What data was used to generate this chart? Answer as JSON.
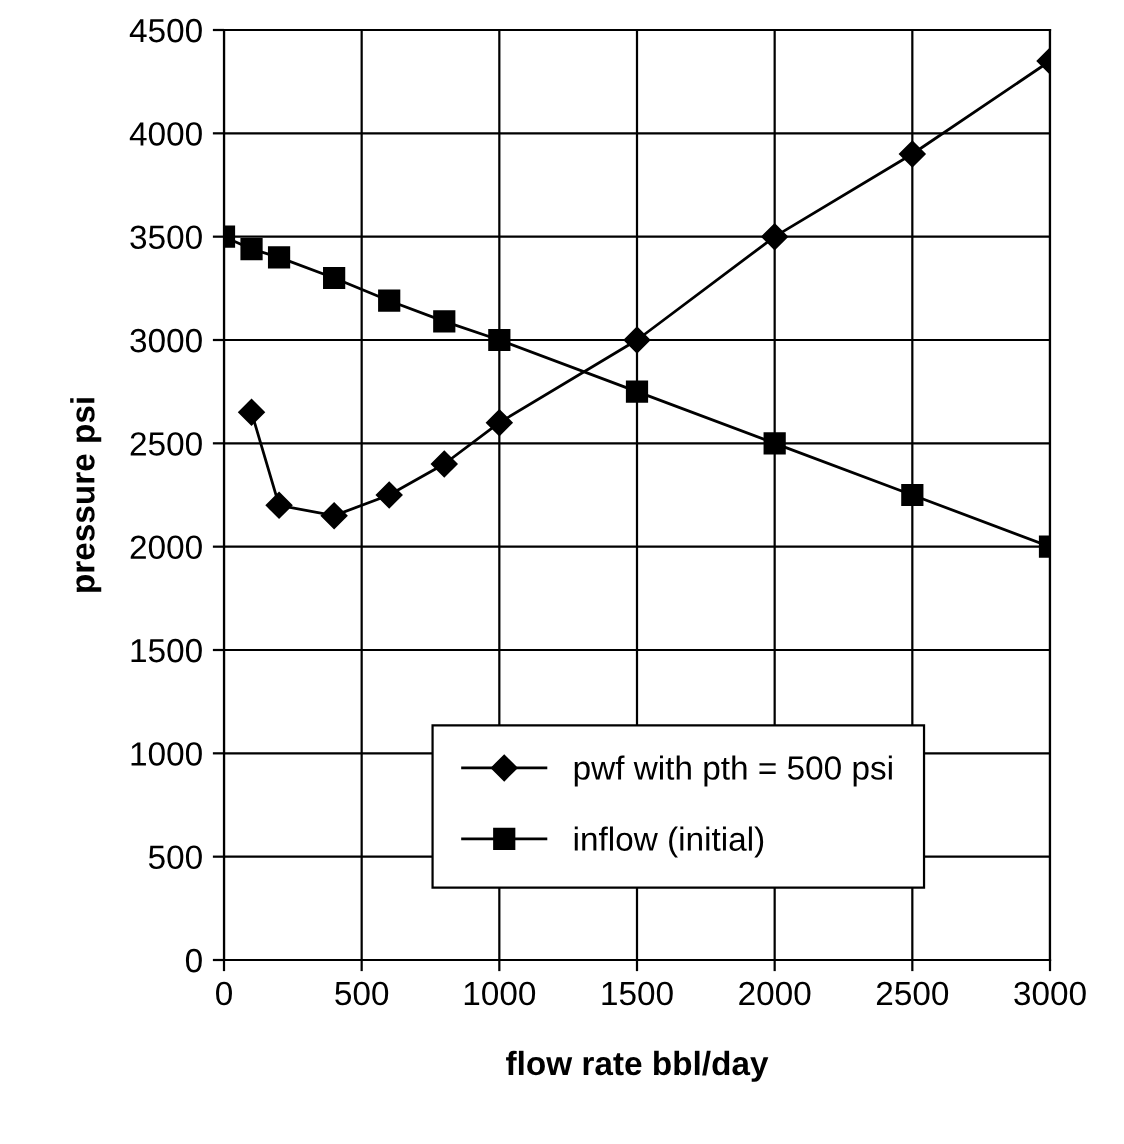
{
  "chart_data": {
    "type": "line",
    "xlabel": "flow rate bbl/day",
    "ylabel": "pressure psi",
    "xlim": [
      0,
      3000
    ],
    "xticks": [
      0,
      500,
      1000,
      1500,
      2000,
      2500,
      3000
    ],
    "ylim": [
      0,
      4500
    ],
    "yticks": [
      0,
      500,
      1000,
      1500,
      2000,
      2500,
      3000,
      3500,
      4000,
      4500
    ],
    "grid": true,
    "legend": "bottom",
    "line_style": "solid",
    "series": [
      {
        "name": "pwf with pth = 500 psi",
        "color": "#000000",
        "marker": "diamond",
        "x": [
          100,
          200,
          400,
          600,
          800,
          1000,
          1500,
          2000,
          2500,
          3000
        ],
        "values": [
          2650,
          2200,
          2150,
          2250,
          2400,
          2600,
          3000,
          3500,
          3900,
          4350
        ]
      },
      {
        "name": "inflow (initial)",
        "color": "#000000",
        "marker": "square",
        "x": [
          0,
          100,
          200,
          400,
          600,
          800,
          1000,
          1500,
          2000,
          2500,
          3000
        ],
        "values": [
          3500,
          3440,
          3400,
          3300,
          3190,
          3090,
          3000,
          2750,
          2500,
          2250,
          2000
        ]
      }
    ]
  }
}
